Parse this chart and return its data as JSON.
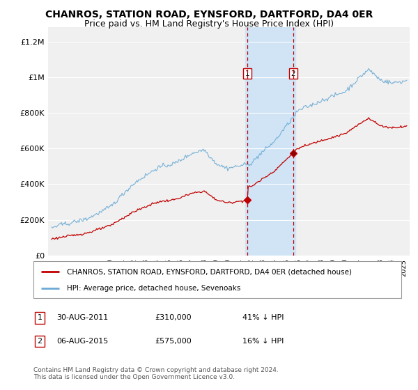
{
  "title": "CHANROS, STATION ROAD, EYNSFORD, DARTFORD, DA4 0ER",
  "subtitle": "Price paid vs. HM Land Registry's House Price Index (HPI)",
  "ylabel_ticks": [
    "£0",
    "£200K",
    "£400K",
    "£600K",
    "£800K",
    "£1M",
    "£1.2M"
  ],
  "ytick_values": [
    0,
    200000,
    400000,
    600000,
    800000,
    1000000,
    1200000
  ],
  "ylim": [
    0,
    1280000
  ],
  "xlim_start": 1994.7,
  "xlim_end": 2025.5,
  "hpi_color": "#6aaad4",
  "price_color": "#c00000",
  "bg_color": "#ffffff",
  "plot_bg_color": "#f0f0f0",
  "grid_color": "#ffffff",
  "sale1_x": 2011.667,
  "sale1_y": 310000,
  "sale2_x": 2015.583,
  "sale2_y": 575000,
  "highlight_xmin": 2011.5,
  "highlight_xmax": 2015.75,
  "highlight_color": "#d0e4f5",
  "vline_color": "#c00000",
  "legend_line1": "CHANROS, STATION ROAD, EYNSFORD, DARTFORD, DA4 0ER (detached house)",
  "legend_line2": "HPI: Average price, detached house, Sevenoaks",
  "table_row1": [
    "1",
    "30-AUG-2011",
    "£310,000",
    "41% ↓ HPI"
  ],
  "table_row2": [
    "2",
    "06-AUG-2015",
    "£575,000",
    "16% ↓ HPI"
  ],
  "footer": "Contains HM Land Registry data © Crown copyright and database right 2024.\nThis data is licensed under the Open Government Licence v3.0.",
  "title_fontsize": 10,
  "subtitle_fontsize": 9,
  "tick_fontsize": 8,
  "legend_fontsize": 8
}
